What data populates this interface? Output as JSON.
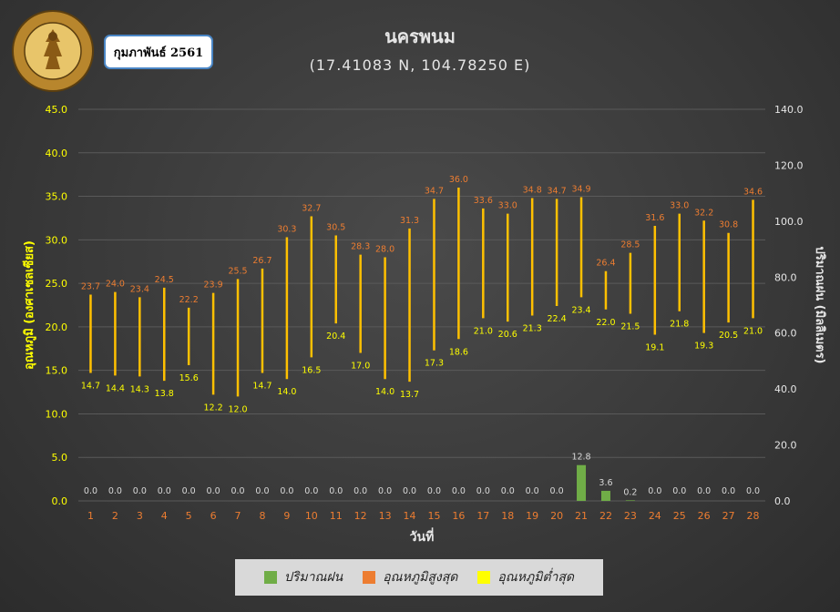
{
  "header": {
    "title": "นครพนม",
    "subtitle": "(17.41083 N, 104.78250 E)",
    "month_label": "กุมภาพันธ์ 2561"
  },
  "logo": {
    "text_top": "กรมอุตุนิยมวิทยา",
    "text_bottom": "METEOROLOGICAL DEPARTMENT"
  },
  "legend": {
    "rain": "ปริมาณฝน",
    "max": "อุณหภูมิสูงสุด",
    "min": "อุณหภูมิต่ำสุด"
  },
  "colors": {
    "rain": "#70ad47",
    "max": "#ed7d31",
    "min": "#ffff00",
    "temp_bar": "#ffc000",
    "rain_label": "#d9d9d9",
    "axis_left": "#ffff00",
    "axis_right": "#e6e6e6",
    "x_tick": "#ed7d31"
  },
  "chart_data": {
    "type": "bar",
    "xlabel": "วันที่",
    "ylabel_left": "อุณหภูมิ (องศาเซลเซียส)",
    "ylabel_right": "ปริมาณฝน (มิลลิเมตร)",
    "ylim_left": [
      0,
      45
    ],
    "yticks_left": [
      "0.0",
      "5.0",
      "10.0",
      "15.0",
      "20.0",
      "25.0",
      "30.0",
      "35.0",
      "40.0",
      "45.0"
    ],
    "ylim_right": [
      0,
      140
    ],
    "yticks_right": [
      "0.0",
      "20.0",
      "40.0",
      "60.0",
      "80.0",
      "100.0",
      "120.0",
      "140.0"
    ],
    "categories": [
      "1",
      "2",
      "3",
      "4",
      "5",
      "6",
      "7",
      "8",
      "9",
      "10",
      "11",
      "12",
      "13",
      "14",
      "15",
      "16",
      "17",
      "18",
      "19",
      "20",
      "21",
      "22",
      "23",
      "24",
      "25",
      "26",
      "27",
      "28"
    ],
    "series": [
      {
        "name": "ปริมาณฝน",
        "values": [
          0.0,
          0.0,
          0.0,
          0.0,
          0.0,
          0.0,
          0.0,
          0.0,
          0.0,
          0.0,
          0.0,
          0.0,
          0.0,
          0.0,
          0.0,
          0.0,
          0.0,
          0.0,
          0.0,
          0.0,
          12.8,
          3.6,
          0.2,
          0.0,
          0.0,
          0.0,
          0.0,
          0.0
        ]
      },
      {
        "name": "อุณหภูมิสูงสุด",
        "values": [
          23.7,
          24.0,
          23.4,
          24.5,
          22.2,
          23.9,
          25.5,
          26.7,
          30.3,
          32.7,
          30.5,
          28.3,
          28.0,
          31.3,
          34.7,
          36.0,
          33.6,
          33.0,
          34.8,
          34.7,
          34.9,
          26.4,
          28.5,
          31.6,
          33.0,
          32.2,
          30.8,
          34.6
        ]
      },
      {
        "name": "อุณหภูมิต่ำสุด",
        "values": [
          14.7,
          14.4,
          14.3,
          13.8,
          15.6,
          12.2,
          12.0,
          14.7,
          14.0,
          16.5,
          20.4,
          17.0,
          14.0,
          13.7,
          17.3,
          18.6,
          21.0,
          20.6,
          21.3,
          22.4,
          23.4,
          22.0,
          21.5,
          19.1,
          21.8,
          19.3,
          20.5,
          21.0
        ]
      }
    ],
    "grid": true,
    "legend_position": "bottom"
  }
}
